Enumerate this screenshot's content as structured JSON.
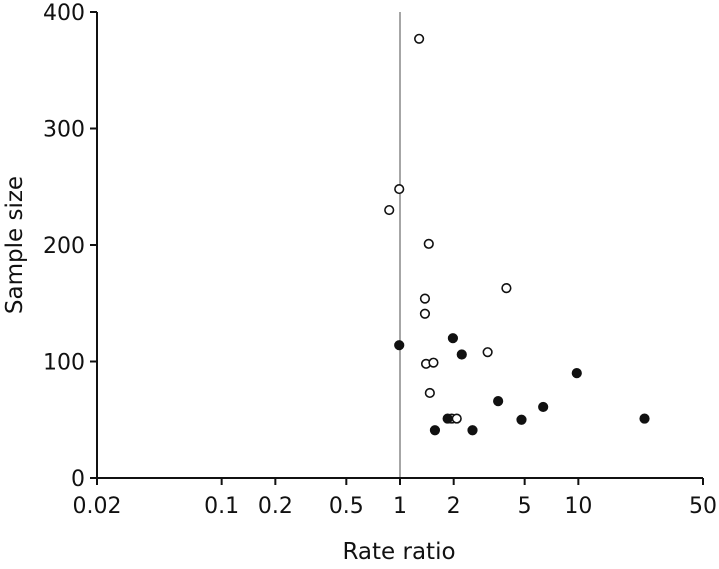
{
  "chart_data": {
    "type": "scatter",
    "xlabel": "Rate ratio",
    "ylabel": "Sample size",
    "x_scale": "log",
    "xlim": [
      0.02,
      50
    ],
    "ylim": [
      0,
      400
    ],
    "x_ticks": [
      0.02,
      0.1,
      0.2,
      0.5,
      1,
      2,
      5,
      10,
      50
    ],
    "x_tick_labels": [
      "0.02",
      "0.1",
      "0.2",
      "0.5",
      "1",
      "2",
      "5",
      "10",
      "50"
    ],
    "y_ticks": [
      0,
      100,
      200,
      300,
      400
    ],
    "y_tick_labels": [
      "0",
      "100",
      "200",
      "300",
      "400"
    ],
    "reference_line_x": 1,
    "grid": false,
    "colors": {
      "marker": "#111111",
      "axis": "#111111",
      "reference_line": "#777777"
    },
    "series": [
      {
        "marker": "open-circle",
        "points": [
          {
            "x": 1.28,
            "y": 377
          },
          {
            "x": 0.99,
            "y": 248
          },
          {
            "x": 0.87,
            "y": 230
          },
          {
            "x": 1.45,
            "y": 201
          },
          {
            "x": 3.95,
            "y": 163
          },
          {
            "x": 1.38,
            "y": 154
          },
          {
            "x": 1.38,
            "y": 141
          },
          {
            "x": 3.1,
            "y": 108
          },
          {
            "x": 1.4,
            "y": 98
          },
          {
            "x": 1.54,
            "y": 99
          },
          {
            "x": 1.47,
            "y": 73
          },
          {
            "x": 1.95,
            "y": 51
          },
          {
            "x": 2.08,
            "y": 51
          }
        ]
      },
      {
        "marker": "filled-circle",
        "points": [
          {
            "x": 0.99,
            "y": 114
          },
          {
            "x": 1.98,
            "y": 120
          },
          {
            "x": 2.22,
            "y": 106
          },
          {
            "x": 9.8,
            "y": 90
          },
          {
            "x": 3.55,
            "y": 66
          },
          {
            "x": 6.35,
            "y": 61
          },
          {
            "x": 4.8,
            "y": 50
          },
          {
            "x": 1.85,
            "y": 51
          },
          {
            "x": 23.5,
            "y": 51
          },
          {
            "x": 1.57,
            "y": 41
          },
          {
            "x": 2.55,
            "y": 41
          }
        ]
      }
    ]
  }
}
